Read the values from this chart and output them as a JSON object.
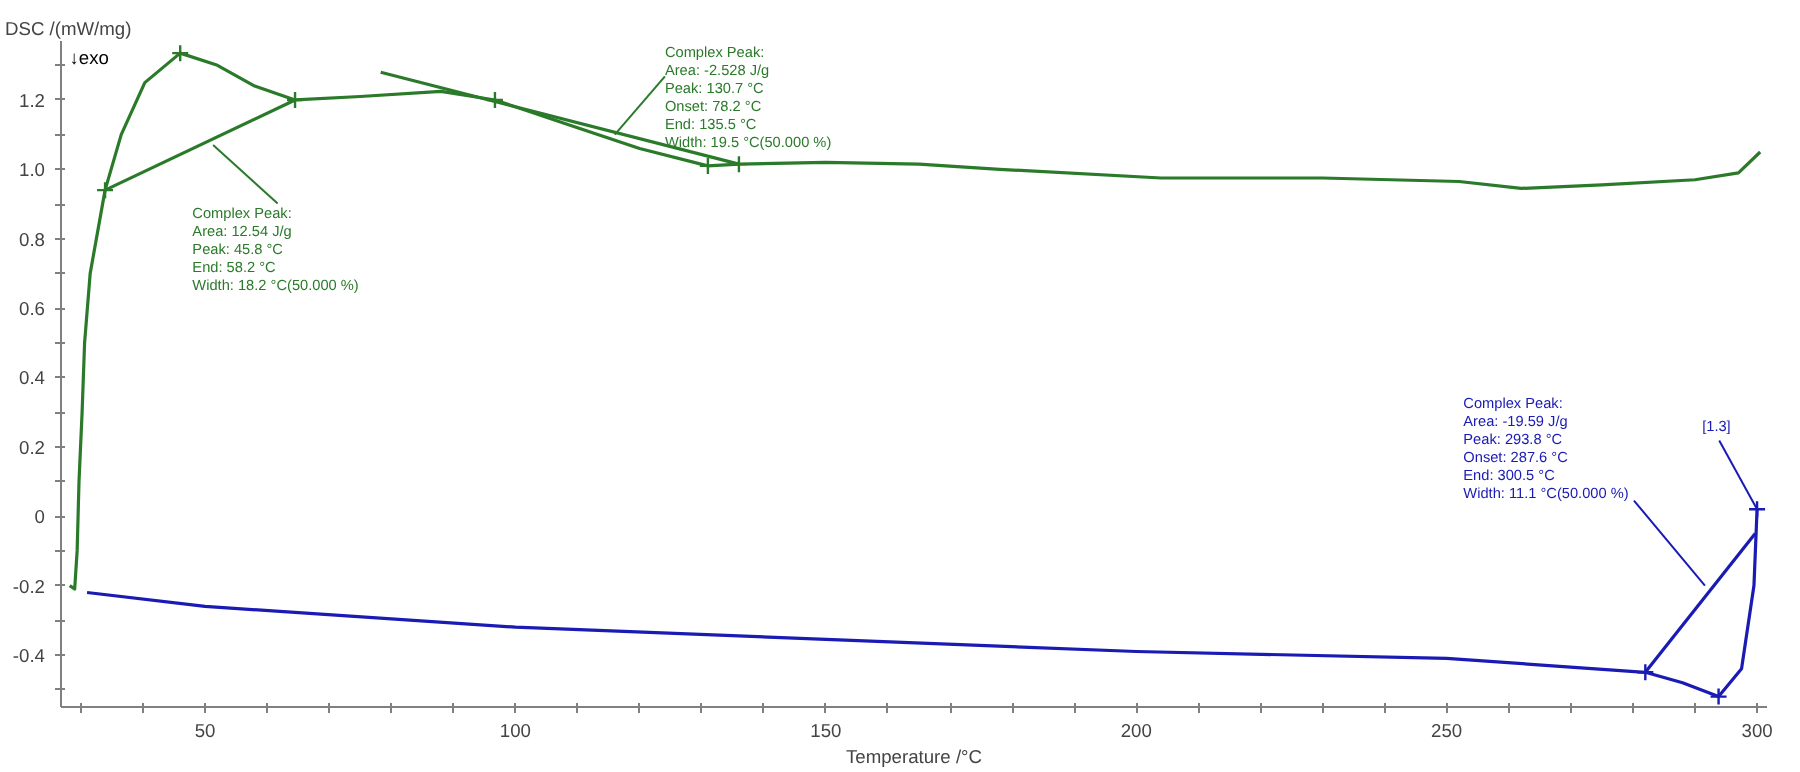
{
  "chart_data": {
    "type": "line",
    "ylabel": "DSC /(mW/mg)",
    "xlabel": "Temperature /°C",
    "xlim": [
      26.8,
      301.6
    ],
    "ylim": [
      -0.55,
      1.37
    ],
    "xticks": [
      {
        "value": 30,
        "label": null
      },
      {
        "value": 40,
        "label": null
      },
      50,
      {
        "value": 60,
        "label": null
      },
      {
        "value": 70,
        "label": null
      },
      {
        "value": 80,
        "label": null
      },
      {
        "value": 90,
        "label": null
      },
      100,
      {
        "value": 110,
        "label": null
      },
      {
        "value": 120,
        "label": null
      },
      {
        "value": 130,
        "label": null
      },
      {
        "value": 140,
        "label": null
      },
      150,
      {
        "value": 160,
        "label": null
      },
      {
        "value": 170,
        "label": null
      },
      {
        "value": 180,
        "label": null
      },
      {
        "value": 190,
        "label": null
      },
      200,
      {
        "value": 210,
        "label": null
      },
      {
        "value": 220,
        "label": null
      },
      {
        "value": 230,
        "label": null
      },
      {
        "value": 240,
        "label": null
      },
      250,
      {
        "value": 260,
        "label": null
      },
      {
        "value": 270,
        "label": null
      },
      {
        "value": 280,
        "label": null
      },
      {
        "value": 290,
        "label": null
      },
      300
    ],
    "yticks": [
      {
        "value": -0.5,
        "label": null
      },
      -0.4,
      {
        "value": -0.3,
        "label": null
      },
      -0.2,
      {
        "value": -0.1,
        "label": null
      },
      0,
      {
        "value": 0.1,
        "label": null
      },
      0.2,
      {
        "value": 0.3,
        "label": null
      },
      0.4,
      {
        "value": 0.5,
        "label": null
      },
      0.6,
      {
        "value": 0.7,
        "label": null
      },
      0.8,
      {
        "value": 0.9,
        "label": null
      },
      {
        "value": 1.0,
        "label": "1.0"
      },
      {
        "value": 1.1,
        "label": null
      },
      1.2,
      {
        "value": 1.3,
        "label": null
      }
    ],
    "series": [
      {
        "color": "#2a7a2a",
        "x": [
          28.2,
          29.0,
          29.4,
          29.7,
          30.2,
          30.6,
          31.5,
          33.9,
          36.5,
          40.3,
          46,
          52,
          58,
          64.5,
          75,
          88,
          96.7,
          110,
          120,
          131,
          136,
          150,
          165,
          178,
          204,
          230,
          252,
          262,
          275,
          290,
          297,
          300.5
        ],
        "values": [
          -0.2,
          -0.21,
          -0.1,
          0.1,
          0.3,
          0.5,
          0.7,
          0.94,
          1.1,
          1.25,
          1.335,
          1.3,
          1.24,
          1.2,
          1.21,
          1.225,
          1.2,
          1.12,
          1.06,
          1.01,
          1.015,
          1.02,
          1.015,
          1.0,
          0.975,
          0.975,
          0.965,
          0.945,
          0.955,
          0.97,
          0.99,
          1.05
        ]
      },
      {
        "color": "#1a1ab4",
        "x": [
          31,
          50,
          100,
          150,
          200,
          250,
          282,
          288,
          293.8,
          297.5,
          299.5,
          300
        ],
        "values": [
          -0.22,
          -0.26,
          -0.32,
          -0.355,
          -0.39,
          -0.41,
          -0.45,
          -0.48,
          -0.52,
          -0.44,
          -0.2,
          0.02
        ]
      },
      {
        "type": "line",
        "color": "#2a7a2a",
        "x": [
          33.9,
          64.5
        ],
        "values": [
          0.94,
          1.2
        ]
      },
      {
        "type": "line",
        "color": "#2a7a2a",
        "x": [
          78.3,
          136
        ],
        "values": [
          1.28,
          1.015
        ]
      },
      {
        "type": "line",
        "color": "#1a1ab4",
        "x": [
          282,
          299.7
        ],
        "values": [
          -0.45,
          -0.05
        ]
      },
      {
        "type": "scatter",
        "marker": "cross",
        "color": "#2a7a2a",
        "x": [
          33.9,
          46,
          64.5,
          96.7,
          131,
          136
        ],
        "values": [
          0.94,
          1.335,
          1.2,
          1.2,
          1.01,
          1.015
        ]
      },
      {
        "type": "scatter",
        "marker": "cross",
        "color": "#1a1ab4",
        "x": [
          282,
          293.8,
          300
        ],
        "values": [
          -0.45,
          -0.52,
          0.02
        ]
      }
    ],
    "annotations": [
      "↓exo",
      {
        "text": "Complex Peak:\nArea:   12.54 J/g\nPeak:   45.8 °C\nEnd:    58.2 °C\nWidth:  18.2 °C(50.000 %)",
        "x": 51.3,
        "y": 1.07
      },
      {
        "text": "Complex Peak:\nArea:      -2.528 J/g\nPeak:    130.7 °C\nOnset:    78.2 °C\nEnd:     135.5 °C\nWidth:    19.5 °C(50.000 %)",
        "x": 116,
        "y": 1.1
      },
      {
        "text": "Complex Peak:\nArea:   -19.59 J/g\nPeak:   293.8 °C\nOnset:  287.6 °C\nEnd:    300.5 °C\nWidth:    11.1 °C(50.000 %)",
        "x": 291.6,
        "y": -0.2
      },
      {
        "text": "[1.3]",
        "x": 300,
        "y": 0.02
      }
    ]
  }
}
